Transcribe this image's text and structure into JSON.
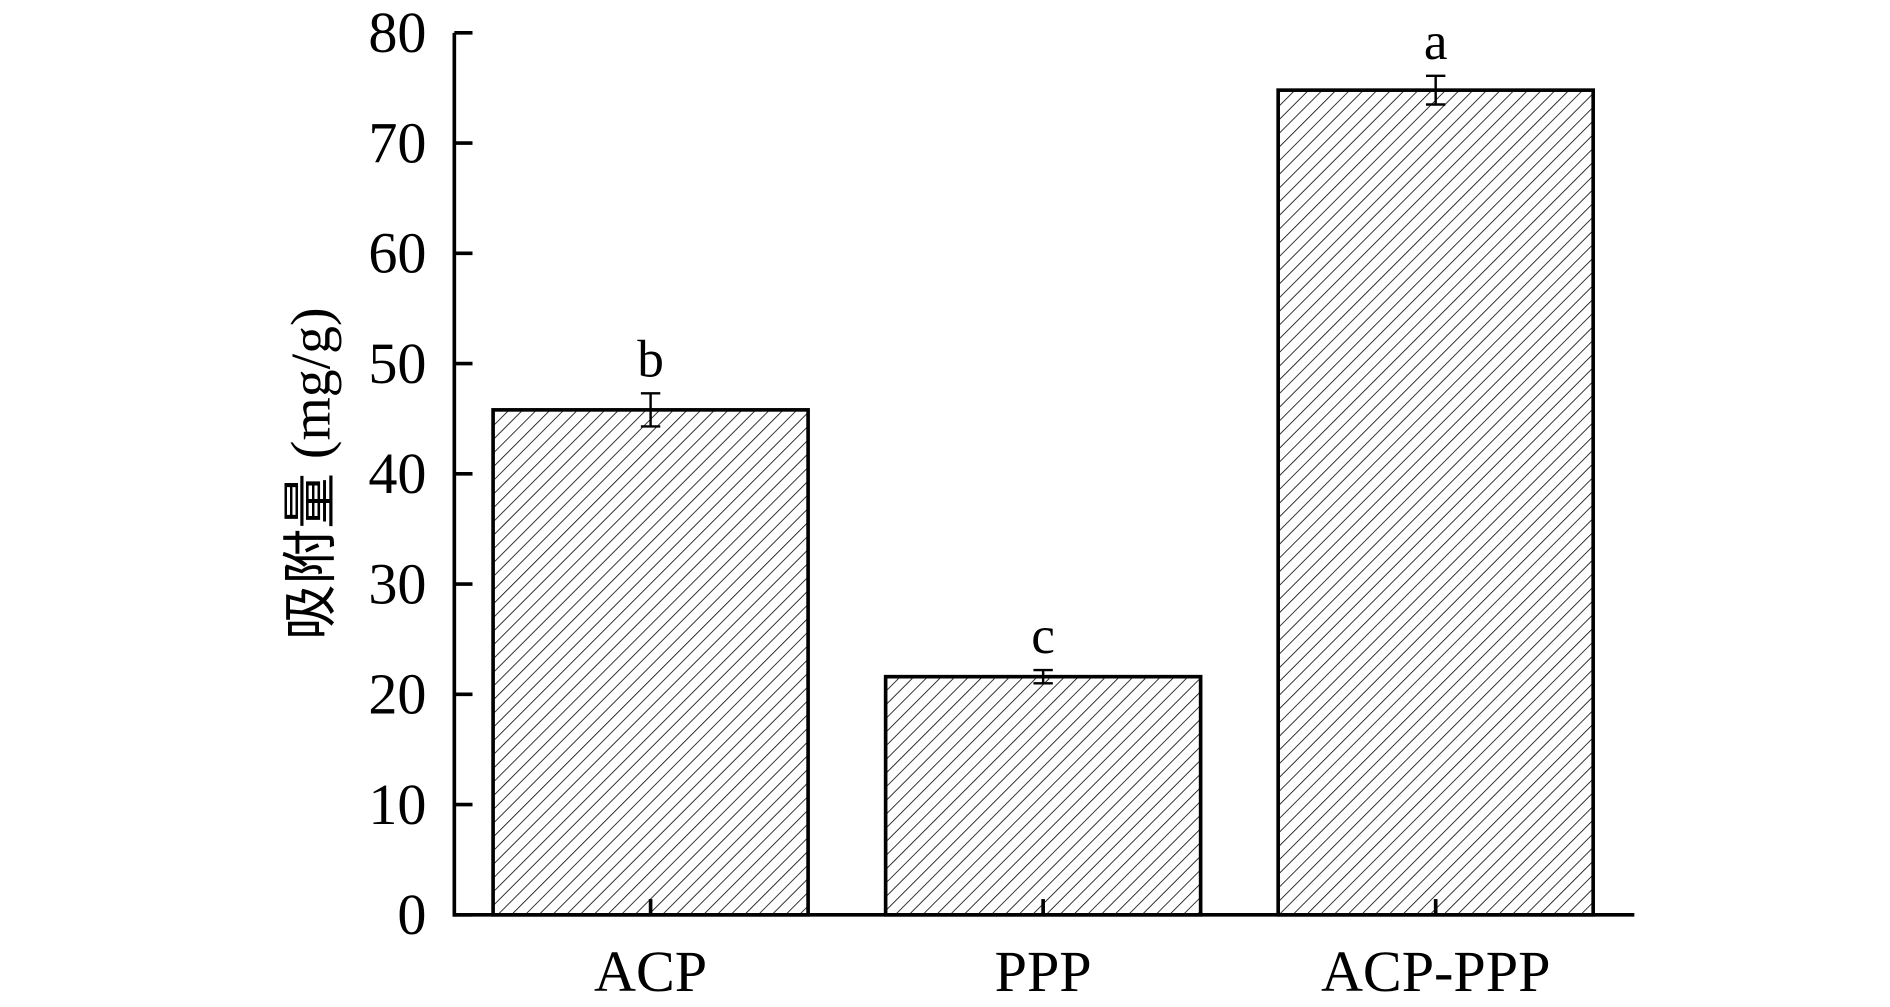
{
  "chart_data": {
    "type": "bar",
    "title": "",
    "xlabel": "",
    "ylabel": "吸附量 (mg/g)",
    "ylim": [
      0,
      80
    ],
    "yticks": [
      0,
      10,
      20,
      30,
      40,
      50,
      60,
      70,
      80
    ],
    "categories": [
      "ACP",
      "PPP",
      "ACP-PPP"
    ],
    "values": [
      45.8,
      21.6,
      74.8
    ],
    "errors": [
      1.5,
      0.6,
      1.3
    ],
    "significance_letters": [
      "b",
      "c",
      "a"
    ],
    "bar_fill": "diagonal hatch",
    "colors": {
      "stroke": "#000000",
      "background": "#ffffff"
    },
    "grid": false,
    "legend": "none"
  }
}
